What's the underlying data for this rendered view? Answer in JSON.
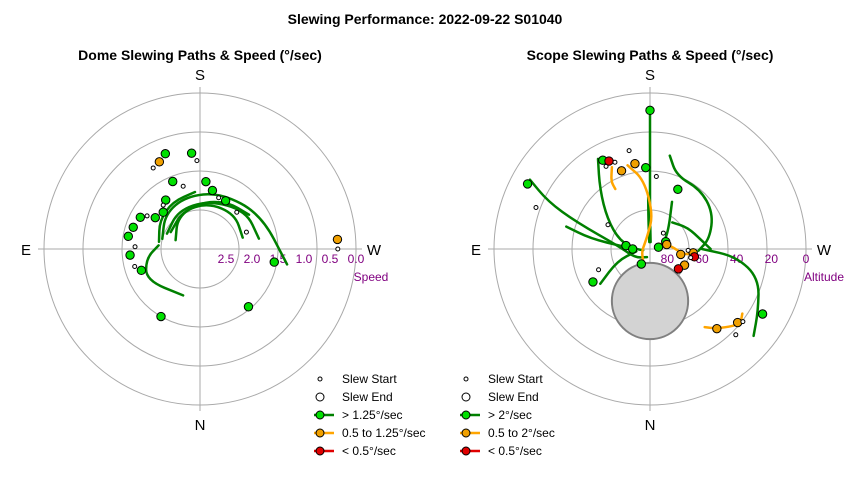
{
  "title": "Slewing Performance: 2022-09-22 S01040",
  "chart_data": [
    {
      "type": "polar",
      "title": "Dome Slewing Paths & Speed (°/sec)",
      "compass": {
        "top": "S",
        "bottom": "N",
        "left": "E",
        "right": "W"
      },
      "radial_label": "Speed",
      "radial_ticks": [
        "2.5",
        "2.0",
        "1.5",
        "1.0",
        "0.5",
        "0.0"
      ],
      "radial_values": [
        2.5,
        2.0,
        1.5,
        1.0,
        0.5,
        0.0
      ],
      "radial_range": [
        0.0,
        3.0
      ],
      "radial_inverted": true,
      "grid": true,
      "legend": [
        "Slew Start",
        "Slew End",
        "> 1.25°/sec",
        "0.5 to 1.25°/sec",
        "< 0.5°/sec"
      ],
      "legend_position": "bottom-right",
      "paths": [
        {
          "category": "fast",
          "points": [
            [
              -60,
              2.35
            ],
            [
              -25,
              2.2
            ],
            [
              10,
              2.1
            ],
            [
              45,
              2.05
            ],
            [
              75,
              2.15
            ]
          ]
        },
        {
          "category": "fast",
          "points": [
            [
              -65,
              2.3
            ],
            [
              -30,
              2.15
            ],
            [
              10,
              2.05
            ],
            [
              50,
              1.85
            ],
            [
              80,
              1.85
            ]
          ]
        },
        {
          "category": "fast",
          "points": [
            [
              -75,
              2.25
            ],
            [
              -45,
              2.05
            ],
            [
              -15,
              1.95
            ],
            [
              20,
              1.85
            ],
            [
              60,
              1.65
            ],
            [
              100,
              1.3
            ]
          ]
        },
        {
          "category": "fast",
          "points": [
            [
              -80,
              2.2
            ],
            [
              -55,
              2.05
            ],
            [
              -30,
              1.95
            ],
            [
              -5,
              1.9
            ]
          ]
        },
        {
          "category": "fast",
          "points": [
            [
              -85,
              2.2
            ],
            [
              -100,
              1.95
            ],
            [
              -120,
              1.8
            ],
            [
              -160,
              2.05
            ]
          ]
        },
        {
          "category": "fast",
          "points": [
            [
              -70,
              2.5
            ],
            [
              -35,
              2.25
            ],
            [
              0,
              2.1
            ],
            [
              30,
              1.95
            ],
            [
              55,
              1.85
            ]
          ]
        }
      ],
      "markers": [
        {
          "category": "fast",
          "theta": -20,
          "r": 1.05,
          "kind": "end"
        },
        {
          "category": "fast",
          "theta": -5,
          "r": 1.15,
          "kind": "end"
        },
        {
          "category": "fast",
          "theta": -22,
          "r": 1.6,
          "kind": "end"
        },
        {
          "category": "fast",
          "theta": -35,
          "r": 1.85,
          "kind": "end"
        },
        {
          "category": "fast",
          "theta": -45,
          "r": 2.0,
          "kind": "end"
        },
        {
          "category": "fast",
          "theta": -55,
          "r": 1.95,
          "kind": "end"
        },
        {
          "category": "fast",
          "theta": -62,
          "r": 1.7,
          "kind": "end"
        },
        {
          "category": "fast",
          "theta": -72,
          "r": 1.65,
          "kind": "end"
        },
        {
          "category": "fast",
          "theta": -80,
          "r": 1.6,
          "kind": "end"
        },
        {
          "category": "fast",
          "theta": -95,
          "r": 1.65,
          "kind": "end"
        },
        {
          "category": "fast",
          "theta": -110,
          "r": 1.8,
          "kind": "end"
        },
        {
          "category": "fast",
          "theta": -150,
          "r": 1.5,
          "kind": "end"
        },
        {
          "category": "fast",
          "theta": 5,
          "r": 1.7,
          "kind": "end"
        },
        {
          "category": "fast",
          "theta": 12,
          "r": 1.85,
          "kind": "end"
        },
        {
          "category": "fast",
          "theta": 28,
          "r": 1.95,
          "kind": "end"
        },
        {
          "category": "fast",
          "theta": 100,
          "r": 1.55,
          "kind": "end"
        },
        {
          "category": "fast",
          "theta": 140,
          "r": 1.55,
          "kind": "end"
        },
        {
          "category": "fast",
          "theta": -2,
          "r": 1.3,
          "kind": "start"
        },
        {
          "category": "fast",
          "theta": -15,
          "r": 1.75,
          "kind": "start"
        },
        {
          "category": "fast",
          "theta": -40,
          "r": 1.9,
          "kind": "start"
        },
        {
          "category": "fast",
          "theta": -58,
          "r": 1.8,
          "kind": "start"
        },
        {
          "category": "fast",
          "theta": -88,
          "r": 1.75,
          "kind": "start"
        },
        {
          "category": "fast",
          "theta": -105,
          "r": 1.7,
          "kind": "start"
        },
        {
          "category": "fast",
          "theta": 20,
          "r": 1.95,
          "kind": "start"
        },
        {
          "category": "fast",
          "theta": 45,
          "r": 2.0,
          "kind": "start"
        },
        {
          "category": "fast",
          "theta": 70,
          "r": 2.05,
          "kind": "start"
        },
        {
          "category": "medium",
          "theta": -25,
          "r": 1.15,
          "kind": "end"
        },
        {
          "category": "medium",
          "theta": 86,
          "r": 0.35,
          "kind": "end"
        },
        {
          "category": "medium",
          "theta": -30,
          "r": 1.2,
          "kind": "start"
        },
        {
          "category": "medium",
          "theta": 90,
          "r": 0.35,
          "kind": "start"
        }
      ]
    },
    {
      "type": "polar",
      "title": "Scope Slewing Paths & Speed (°/sec)",
      "compass": {
        "top": "S",
        "bottom": "N",
        "left": "E",
        "right": "W"
      },
      "radial_label": "Altitude",
      "radial_ticks": [
        "80",
        "60",
        "40",
        "20",
        "0"
      ],
      "radial_values": [
        80,
        60,
        40,
        20,
        0
      ],
      "radial_range": [
        0,
        90
      ],
      "radial_inverted": true,
      "grid": true,
      "legend": [
        "Slew Start",
        "Slew End",
        "> 2°/sec",
        "0.5 to 2°/sec",
        "< 0.5°/sec"
      ],
      "legend_position": "bottom-right",
      "exclusion_zone": {
        "theta": 180,
        "r": 60,
        "radius_deg": 22
      },
      "paths": [
        {
          "category": "fast",
          "points": [
            [
              0,
              12
            ],
            [
              0,
              45
            ],
            [
              0,
              70
            ],
            [
              5,
              86
            ]
          ]
        },
        {
          "category": "fast",
          "points": [
            [
              -2,
              60
            ],
            [
              -3,
              72
            ],
            [
              -6,
              86
            ]
          ]
        },
        {
          "category": "fast",
          "points": [
            [
              -30,
              30
            ],
            [
              -40,
              45
            ],
            [
              -55,
              60
            ],
            [
              -75,
              72
            ],
            [
              -90,
              82
            ],
            [
              -100,
              86
            ]
          ]
        },
        {
          "category": "fast",
          "points": [
            [
              -60,
              10
            ],
            [
              -65,
              25
            ],
            [
              -70,
              45
            ],
            [
              -85,
              72
            ],
            [
              -120,
              80
            ],
            [
              -160,
              85
            ]
          ]
        },
        {
          "category": "fast",
          "points": [
            [
              -125,
              55
            ],
            [
              -110,
              70
            ],
            [
              -100,
              82
            ]
          ]
        },
        {
          "category": "fast",
          "points": [
            [
              -75,
              40
            ],
            [
              -80,
              55
            ],
            [
              -85,
              75
            ]
          ]
        },
        {
          "category": "fast",
          "points": [
            [
              12,
              35
            ],
            [
              20,
              45
            ],
            [
              40,
              45
            ],
            [
              60,
              48
            ],
            [
              80,
              55
            ],
            [
              92,
              62
            ]
          ]
        },
        {
          "category": "fast",
          "points": [
            [
              90,
              60
            ],
            [
              95,
              40
            ],
            [
              105,
              25
            ],
            [
              120,
              18
            ],
            [
              130,
              12
            ]
          ]
        },
        {
          "category": "fast",
          "points": [
            [
              40,
              70
            ],
            [
              60,
              65
            ],
            [
              80,
              60
            ],
            [
              90,
              55
            ]
          ]
        },
        {
          "category": "fast",
          "points": [
            [
              25,
              60
            ],
            [
              45,
              75
            ],
            [
              70,
              82
            ],
            [
              85,
              86
            ]
          ]
        },
        {
          "category": "medium",
          "points": [
            [
              -15,
              40
            ],
            [
              -5,
              50
            ],
            [
              5,
              70
            ],
            [
              -10,
              82
            ],
            [
              -60,
              86
            ],
            [
              -110,
              85
            ],
            [
              -150,
              82
            ]
          ]
        },
        {
          "category": "medium",
          "points": [
            [
              -25,
              38
            ],
            [
              -30,
              45
            ],
            [
              -30,
              50
            ]
          ]
        },
        {
          "category": "medium",
          "points": [
            [
              95,
              65
            ],
            [
              100,
              70
            ],
            [
              80,
              78
            ],
            [
              60,
              84
            ]
          ]
        },
        {
          "category": "medium",
          "points": [
            [
              125,
              25
            ],
            [
              130,
              22
            ],
            [
              140,
              30
            ],
            [
              145,
              35
            ]
          ]
        }
      ],
      "markers": [
        {
          "category": "fast",
          "theta": 0,
          "r": 10,
          "kind": "end"
        },
        {
          "category": "fast",
          "theta": -3,
          "r": 43,
          "kind": "end"
        },
        {
          "category": "fast",
          "theta": -28,
          "r": 32,
          "kind": "end"
        },
        {
          "category": "fast",
          "theta": 25,
          "r": 52,
          "kind": "end"
        },
        {
          "category": "fast",
          "theta": -62,
          "r": 10,
          "kind": "end"
        },
        {
          "category": "fast",
          "theta": 120,
          "r": 15,
          "kind": "end"
        },
        {
          "category": "fast",
          "theta": 78,
          "r": 85,
          "kind": "end"
        },
        {
          "category": "fast",
          "theta": -120,
          "r": 52,
          "kind": "end"
        },
        {
          "category": "fast",
          "theta": -82,
          "r": 76,
          "kind": "end"
        },
        {
          "category": "fast",
          "theta": -150,
          "r": 80,
          "kind": "end"
        },
        {
          "category": "fast",
          "theta": -90,
          "r": 80,
          "kind": "end"
        },
        {
          "category": "fast",
          "theta": 65,
          "r": 80,
          "kind": "end"
        },
        {
          "category": "fast",
          "theta": 135,
          "r": 20,
          "kind": "start"
        },
        {
          "category": "fast",
          "theta": 5,
          "r": 48,
          "kind": "start"
        },
        {
          "category": "fast",
          "theta": -70,
          "r": 20,
          "kind": "start"
        },
        {
          "category": "fast",
          "theta": -112,
          "r": 58,
          "kind": "start"
        },
        {
          "category": "fast",
          "theta": -60,
          "r": 62,
          "kind": "start"
        },
        {
          "category": "fast",
          "theta": 40,
          "r": 78,
          "kind": "start"
        },
        {
          "category": "medium",
          "theta": -20,
          "r": 42,
          "kind": "end"
        },
        {
          "category": "medium",
          "theta": -10,
          "r": 40,
          "kind": "end"
        },
        {
          "category": "medium",
          "theta": 130,
          "r": 24,
          "kind": "end"
        },
        {
          "category": "medium",
          "theta": 140,
          "r": 30,
          "kind": "end"
        },
        {
          "category": "medium",
          "theta": 95,
          "r": 65,
          "kind": "end"
        },
        {
          "category": "medium",
          "theta": 100,
          "r": 72,
          "kind": "end"
        },
        {
          "category": "medium",
          "theta": 115,
          "r": 68,
          "kind": "end"
        },
        {
          "category": "medium",
          "theta": 75,
          "r": 80,
          "kind": "end"
        },
        {
          "category": "medium",
          "theta": -12,
          "r": 32,
          "kind": "start"
        },
        {
          "category": "medium",
          "theta": -28,
          "r": 36,
          "kind": "start"
        },
        {
          "category": "medium",
          "theta": 128,
          "r": 22,
          "kind": "start"
        },
        {
          "category": "medium",
          "theta": 92,
          "r": 68,
          "kind": "start"
        },
        {
          "category": "slow",
          "theta": -25,
          "r": 34,
          "kind": "end"
        },
        {
          "category": "slow",
          "theta": 100,
          "r": 64,
          "kind": "end"
        },
        {
          "category": "slow",
          "theta": 125,
          "r": 70,
          "kind": "end"
        },
        {
          "category": "slow",
          "theta": -22,
          "r": 36,
          "kind": "start"
        },
        {
          "category": "slow",
          "theta": 102,
          "r": 66,
          "kind": "start"
        }
      ]
    }
  ],
  "colors": {
    "fast_fill": "#00e000",
    "fast_line": "#008000",
    "medium_fill": "#f0a000",
    "medium_line": "#ffa500",
    "slow_fill": "#e00000",
    "slow_line": "#e00000",
    "grid": "#a9a9a9",
    "tick": "#800080",
    "exclusion_fill": "#d3d3d3",
    "exclusion_stroke": "#808080"
  }
}
